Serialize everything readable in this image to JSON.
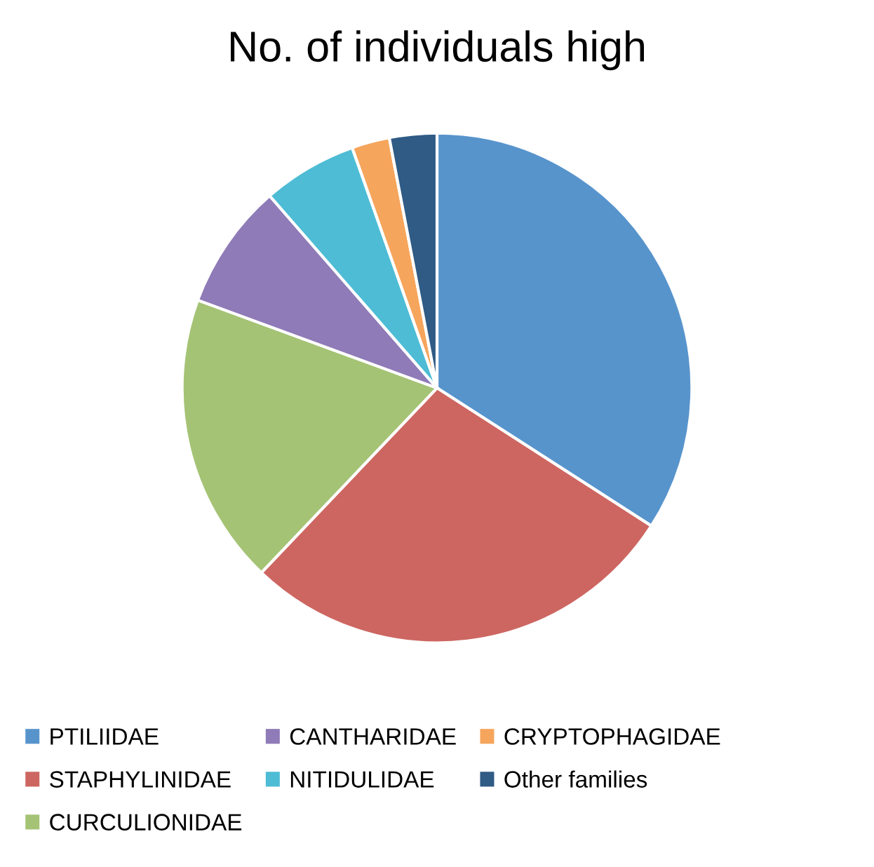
{
  "chart_data": {
    "type": "pie",
    "title": "No. of individuals high",
    "categories": [
      "PTILIIDAE",
      "STAPHYLINIDAE",
      "CURCULIONIDAE",
      "CANTHARIDAE",
      "NITIDULIDAE",
      "CRYPTOPHAGIDAE",
      "Other families"
    ],
    "values": [
      34.1,
      28.0,
      18.5,
      8.0,
      6.0,
      2.4,
      3.0
    ],
    "colors": [
      "#5894cc",
      "#cd6661",
      "#a5c375",
      "#8f7bb7",
      "#4ebcd5",
      "#f6a55c",
      "#2f5b85"
    ],
    "legend": "bottom"
  }
}
